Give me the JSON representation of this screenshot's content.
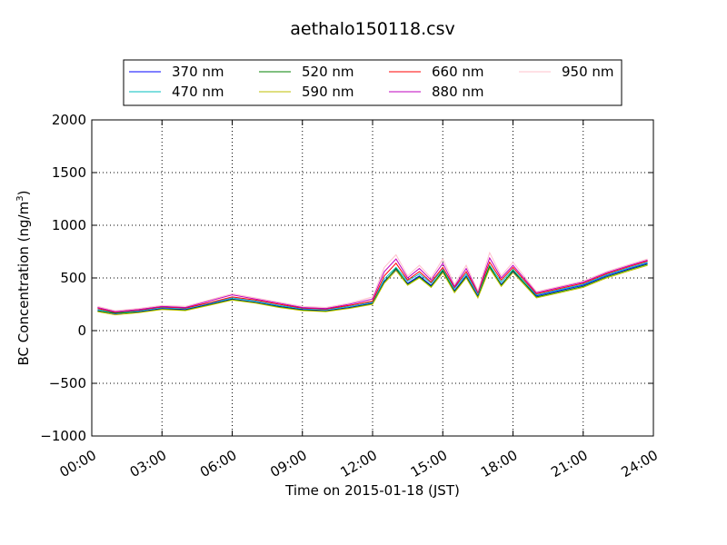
{
  "chart_data": {
    "type": "line",
    "title": "aethalo150118.csv",
    "xlabel": "Time on 2015-01-18 (JST)",
    "ylabel": "BC Concentration (ng/m",
    "ylabel_sup": "3",
    "ylabel_close": ")",
    "xlim": [
      0,
      24
    ],
    "ylim": [
      -1000,
      2000
    ],
    "x_ticks": [
      0,
      3,
      6,
      9,
      12,
      15,
      18,
      21,
      24
    ],
    "x_tick_labels": [
      "00:00",
      "03:00",
      "06:00",
      "09:00",
      "12:00",
      "15:00",
      "18:00",
      "21:00",
      "24:00"
    ],
    "y_ticks": [
      -1000,
      -500,
      0,
      500,
      1000,
      1500,
      2000
    ],
    "y_tick_labels": [
      "−1000",
      "−500",
      "0",
      "500",
      "1000",
      "1500",
      "2000"
    ],
    "grid": true,
    "legend_position": "top-center",
    "x_units": "hours since 00:00",
    "series": [
      {
        "name": "370 nm",
        "color": "#0000ff",
        "x": [
          0.25,
          1,
          2,
          3,
          4,
          5,
          6,
          7,
          8,
          9,
          10,
          11,
          12,
          12.5,
          13,
          13.5,
          14,
          14.5,
          15,
          15.5,
          16,
          16.5,
          17,
          17.5,
          18,
          19,
          20,
          21,
          22,
          23,
          23.75
        ],
        "values": [
          190,
          160,
          180,
          210,
          200,
          250,
          300,
          270,
          230,
          200,
          190,
          220,
          260,
          470,
          580,
          450,
          520,
          430,
          560,
          380,
          520,
          330,
          600,
          440,
          560,
          330,
          380,
          430,
          520,
          590,
          640
        ]
      },
      {
        "name": "470 nm",
        "color": "#00bfbf",
        "x": [
          0.25,
          1,
          2,
          3,
          4,
          5,
          6,
          7,
          8,
          9,
          10,
          11,
          12,
          12.5,
          13,
          13.5,
          14,
          14.5,
          15,
          15.5,
          16,
          16.5,
          17,
          17.5,
          18,
          19,
          20,
          21,
          22,
          23,
          23.75
        ],
        "values": [
          200,
          170,
          190,
          220,
          210,
          260,
          310,
          280,
          240,
          210,
          200,
          230,
          270,
          490,
          600,
          470,
          540,
          450,
          580,
          400,
          540,
          350,
          620,
          460,
          580,
          340,
          390,
          440,
          530,
          600,
          650
        ]
      },
      {
        "name": "520 nm",
        "color": "#008000",
        "x": [
          0.25,
          1,
          2,
          3,
          4,
          5,
          6,
          7,
          8,
          9,
          10,
          11,
          12,
          12.5,
          13,
          13.5,
          14,
          14.5,
          15,
          15.5,
          16,
          16.5,
          17,
          17.5,
          18,
          19,
          20,
          21,
          22,
          23,
          23.75
        ],
        "values": [
          185,
          165,
          175,
          205,
          195,
          245,
          295,
          265,
          225,
          195,
          185,
          215,
          255,
          460,
          590,
          440,
          510,
          420,
          570,
          370,
          510,
          320,
          610,
          430,
          570,
          320,
          370,
          420,
          510,
          580,
          630
        ]
      },
      {
        "name": "590 nm",
        "color": "#bfbf00",
        "x": [
          0.25,
          1,
          2,
          3,
          4,
          5,
          6,
          7,
          8,
          9,
          10,
          11,
          12,
          12.5,
          13,
          13.5,
          14,
          14.5,
          15,
          15.5,
          16,
          16.5,
          17,
          17.5,
          18,
          19,
          20,
          21,
          22,
          23,
          23.75
        ],
        "values": [
          180,
          150,
          170,
          200,
          190,
          240,
          290,
          260,
          220,
          190,
          180,
          210,
          250,
          450,
          570,
          430,
          500,
          410,
          550,
          360,
          500,
          310,
          590,
          420,
          550,
          310,
          360,
          410,
          500,
          570,
          620
        ]
      },
      {
        "name": "660 nm",
        "color": "#ff0000",
        "x": [
          0.25,
          1,
          2,
          3,
          4,
          5,
          6,
          7,
          8,
          9,
          10,
          11,
          12,
          12.5,
          13,
          13.5,
          14,
          14.5,
          15,
          15.5,
          16,
          16.5,
          17,
          17.5,
          18,
          19,
          20,
          21,
          22,
          23,
          23.75
        ],
        "values": [
          210,
          175,
          195,
          225,
          215,
          265,
          320,
          290,
          250,
          215,
          205,
          240,
          280,
          520,
          640,
          480,
          560,
          460,
          600,
          410,
          560,
          360,
          650,
          480,
          600,
          350,
          400,
          450,
          540,
          610,
          660
        ]
      },
      {
        "name": "880 nm",
        "color": "#bf00bf",
        "x": [
          0.25,
          1,
          2,
          3,
          4,
          5,
          6,
          7,
          8,
          9,
          10,
          11,
          12,
          12.5,
          13,
          13.5,
          14,
          14.5,
          15,
          15.5,
          16,
          16.5,
          17,
          17.5,
          18,
          19,
          20,
          21,
          22,
          23,
          23.75
        ],
        "values": [
          220,
          180,
          200,
          230,
          220,
          280,
          340,
          300,
          260,
          220,
          210,
          250,
          300,
          560,
          680,
          500,
          590,
          480,
          640,
          420,
          590,
          370,
          690,
          500,
          620,
          360,
          410,
          460,
          550,
          620,
          670
        ]
      },
      {
        "name": "950 nm",
        "color": "#ffc0cb",
        "x": [
          0.25,
          1,
          2,
          3,
          4,
          5,
          6,
          7,
          8,
          9,
          10,
          11,
          12,
          12.5,
          13,
          13.5,
          14,
          14.5,
          15,
          15.5,
          16,
          16.5,
          17,
          17.5,
          18,
          19,
          20,
          21,
          22,
          23,
          23.75
        ],
        "values": [
          230,
          190,
          210,
          240,
          230,
          290,
          350,
          310,
          270,
          230,
          220,
          260,
          320,
          600,
          720,
          520,
          620,
          500,
          680,
          440,
          620,
          380,
          740,
          520,
          650,
          370,
          420,
          470,
          560,
          630,
          680
        ]
      }
    ]
  }
}
